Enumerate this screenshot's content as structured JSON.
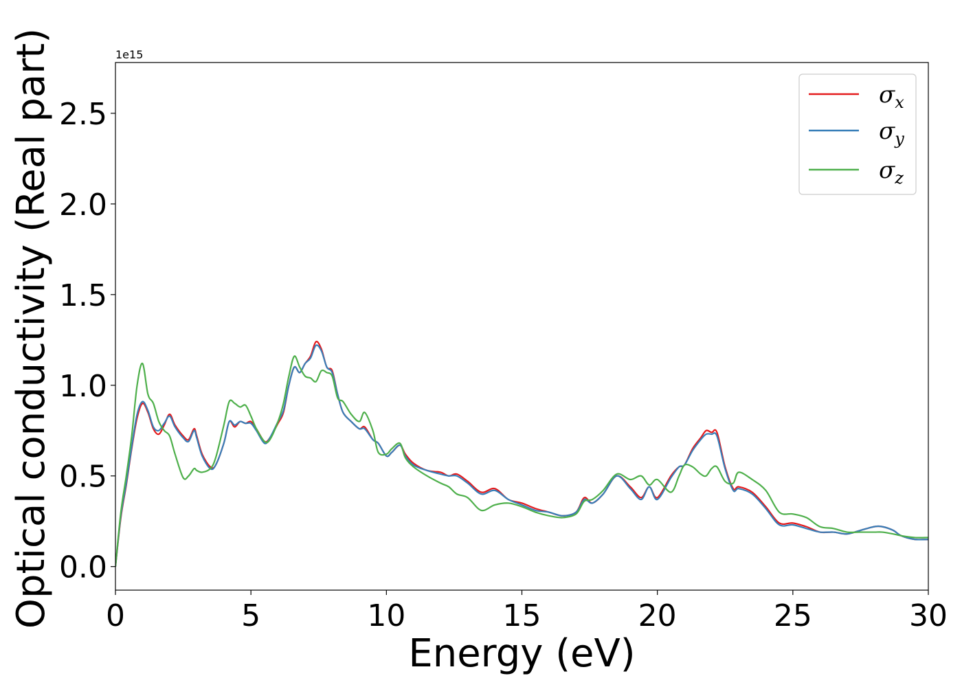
{
  "chart_data": {
    "type": "line",
    "title": "",
    "xlabel": "Energy (eV)",
    "ylabel": "Optical conductivity (Real part)",
    "y_offset_label": "1e15",
    "xlim": [
      0,
      30
    ],
    "ylim": [
      -0.13,
      2.78
    ],
    "xticks": [
      0,
      5,
      10,
      15,
      20,
      25,
      30
    ],
    "yticks": [
      0.0,
      0.5,
      1.0,
      1.5,
      2.0,
      2.5
    ],
    "xtick_labels": [
      "0",
      "5",
      "10",
      "15",
      "20",
      "25",
      "30"
    ],
    "ytick_labels": [
      "0.0",
      "0.5",
      "1.0",
      "1.5",
      "2.0",
      "2.5"
    ],
    "grid": false,
    "legend": "top-right",
    "series": [
      {
        "name": "σx",
        "symbol": "σ",
        "subscript": "x",
        "color": "#e41a1c",
        "x": [
          0,
          0.2,
          0.4,
          0.6,
          0.8,
          1.0,
          1.2,
          1.4,
          1.6,
          1.8,
          2.0,
          2.2,
          2.5,
          2.7,
          2.9,
          3.0,
          3.2,
          3.5,
          3.7,
          4.0,
          4.2,
          4.4,
          4.6,
          4.8,
          5.0,
          5.2,
          5.5,
          5.7,
          6.0,
          6.2,
          6.4,
          6.6,
          6.8,
          7.0,
          7.2,
          7.4,
          7.6,
          7.8,
          8.0,
          8.2,
          8.4,
          8.7,
          9.0,
          9.2,
          9.5,
          9.7,
          10.0,
          10.2,
          10.5,
          10.7,
          11.0,
          11.5,
          12.0,
          12.3,
          12.6,
          13.0,
          13.5,
          14.0,
          14.5,
          15.0,
          15.5,
          16.0,
          16.5,
          17.0,
          17.3,
          17.6,
          18.0,
          18.5,
          19.0,
          19.4,
          19.7,
          20.0,
          20.5,
          20.8,
          21.0,
          21.3,
          21.6,
          21.8,
          22.0,
          22.2,
          22.5,
          22.8,
          23.0,
          23.5,
          24.0,
          24.5,
          25.0,
          25.5,
          26.0,
          26.5,
          27.0,
          27.5,
          28.0,
          28.3,
          28.7,
          29.0,
          29.5,
          30.0
        ],
        "y": [
          0.0,
          0.27,
          0.45,
          0.65,
          0.82,
          0.9,
          0.85,
          0.76,
          0.73,
          0.78,
          0.84,
          0.78,
          0.72,
          0.7,
          0.76,
          0.72,
          0.62,
          0.55,
          0.56,
          0.68,
          0.8,
          0.77,
          0.8,
          0.79,
          0.8,
          0.76,
          0.69,
          0.71,
          0.79,
          0.85,
          1.0,
          1.1,
          1.07,
          1.12,
          1.16,
          1.24,
          1.2,
          1.1,
          1.08,
          0.95,
          0.85,
          0.8,
          0.76,
          0.77,
          0.7,
          0.68,
          0.61,
          0.63,
          0.67,
          0.62,
          0.57,
          0.53,
          0.52,
          0.5,
          0.51,
          0.47,
          0.41,
          0.43,
          0.37,
          0.35,
          0.32,
          0.3,
          0.28,
          0.3,
          0.38,
          0.35,
          0.4,
          0.5,
          0.44,
          0.38,
          0.44,
          0.38,
          0.5,
          0.55,
          0.56,
          0.65,
          0.71,
          0.75,
          0.74,
          0.74,
          0.55,
          0.43,
          0.44,
          0.41,
          0.33,
          0.24,
          0.24,
          0.22,
          0.19,
          0.19,
          0.18,
          0.2,
          0.22,
          0.22,
          0.2,
          0.17,
          0.15,
          0.15
        ]
      },
      {
        "name": "σy",
        "symbol": "σ",
        "subscript": "y",
        "color": "#377eb8",
        "x": [
          0,
          0.2,
          0.4,
          0.6,
          0.8,
          1.0,
          1.2,
          1.4,
          1.6,
          1.8,
          2.0,
          2.2,
          2.5,
          2.7,
          2.9,
          3.0,
          3.2,
          3.5,
          3.7,
          4.0,
          4.2,
          4.4,
          4.6,
          4.8,
          5.0,
          5.2,
          5.5,
          5.7,
          6.0,
          6.2,
          6.4,
          6.6,
          6.8,
          7.0,
          7.2,
          7.4,
          7.6,
          7.8,
          8.0,
          8.2,
          8.4,
          8.7,
          9.0,
          9.2,
          9.5,
          9.7,
          10.0,
          10.2,
          10.5,
          10.7,
          11.0,
          11.5,
          12.0,
          12.3,
          12.6,
          13.0,
          13.5,
          14.0,
          14.5,
          15.0,
          15.5,
          16.0,
          16.5,
          17.0,
          17.3,
          17.6,
          18.0,
          18.5,
          19.0,
          19.4,
          19.7,
          20.0,
          20.5,
          20.8,
          21.0,
          21.3,
          21.6,
          21.8,
          22.0,
          22.2,
          22.5,
          22.8,
          23.0,
          23.5,
          24.0,
          24.5,
          25.0,
          25.5,
          26.0,
          26.5,
          27.0,
          27.5,
          28.0,
          28.3,
          28.7,
          29.0,
          29.5,
          30.0
        ],
        "y": [
          0.0,
          0.28,
          0.46,
          0.66,
          0.84,
          0.91,
          0.86,
          0.77,
          0.75,
          0.79,
          0.83,
          0.77,
          0.71,
          0.69,
          0.75,
          0.71,
          0.61,
          0.54,
          0.56,
          0.68,
          0.8,
          0.78,
          0.8,
          0.79,
          0.79,
          0.75,
          0.68,
          0.71,
          0.8,
          0.86,
          1.0,
          1.1,
          1.07,
          1.12,
          1.15,
          1.22,
          1.19,
          1.1,
          1.07,
          0.95,
          0.85,
          0.8,
          0.76,
          0.76,
          0.7,
          0.68,
          0.61,
          0.63,
          0.67,
          0.61,
          0.56,
          0.53,
          0.51,
          0.5,
          0.5,
          0.46,
          0.4,
          0.42,
          0.37,
          0.34,
          0.31,
          0.3,
          0.28,
          0.3,
          0.37,
          0.35,
          0.4,
          0.5,
          0.43,
          0.37,
          0.44,
          0.37,
          0.49,
          0.55,
          0.56,
          0.64,
          0.7,
          0.73,
          0.73,
          0.72,
          0.54,
          0.42,
          0.43,
          0.4,
          0.32,
          0.23,
          0.23,
          0.21,
          0.19,
          0.19,
          0.18,
          0.2,
          0.22,
          0.22,
          0.2,
          0.17,
          0.15,
          0.15
        ]
      },
      {
        "name": "σz",
        "symbol": "σ",
        "subscript": "z",
        "color": "#4daf4a",
        "x": [
          0,
          0.2,
          0.4,
          0.6,
          0.8,
          1.0,
          1.2,
          1.4,
          1.6,
          1.8,
          2.0,
          2.2,
          2.5,
          2.7,
          2.9,
          3.0,
          3.2,
          3.5,
          3.7,
          4.0,
          4.2,
          4.4,
          4.6,
          4.8,
          5.0,
          5.2,
          5.5,
          5.7,
          6.0,
          6.2,
          6.4,
          6.6,
          6.8,
          7.0,
          7.2,
          7.4,
          7.6,
          7.8,
          8.0,
          8.2,
          8.4,
          8.7,
          9.0,
          9.2,
          9.5,
          9.7,
          10.0,
          10.2,
          10.5,
          10.7,
          11.0,
          11.5,
          12.0,
          12.3,
          12.6,
          13.0,
          13.5,
          14.0,
          14.5,
          15.0,
          15.5,
          16.0,
          16.5,
          17.0,
          17.3,
          17.6,
          18.0,
          18.5,
          19.0,
          19.4,
          19.7,
          20.0,
          20.5,
          20.8,
          21.0,
          21.3,
          21.6,
          21.8,
          22.0,
          22.2,
          22.5,
          22.8,
          23.0,
          23.5,
          24.0,
          24.5,
          25.0,
          25.5,
          26.0,
          26.5,
          27.0,
          27.5,
          28.0,
          28.3,
          28.7,
          29.0,
          29.5,
          30.0
        ],
        "y": [
          0.0,
          0.3,
          0.5,
          0.72,
          1.0,
          1.12,
          0.95,
          0.9,
          0.8,
          0.75,
          0.72,
          0.62,
          0.49,
          0.5,
          0.54,
          0.53,
          0.52,
          0.54,
          0.6,
          0.78,
          0.91,
          0.9,
          0.88,
          0.89,
          0.83,
          0.76,
          0.69,
          0.7,
          0.8,
          0.9,
          1.05,
          1.16,
          1.1,
          1.05,
          1.04,
          1.02,
          1.08,
          1.07,
          1.05,
          0.93,
          0.91,
          0.84,
          0.8,
          0.85,
          0.75,
          0.63,
          0.62,
          0.65,
          0.68,
          0.6,
          0.55,
          0.5,
          0.46,
          0.44,
          0.4,
          0.38,
          0.31,
          0.34,
          0.35,
          0.33,
          0.3,
          0.28,
          0.27,
          0.29,
          0.36,
          0.37,
          0.42,
          0.51,
          0.48,
          0.5,
          0.45,
          0.48,
          0.41,
          0.5,
          0.56,
          0.55,
          0.51,
          0.5,
          0.54,
          0.55,
          0.47,
          0.46,
          0.52,
          0.48,
          0.42,
          0.3,
          0.29,
          0.27,
          0.22,
          0.21,
          0.19,
          0.19,
          0.19,
          0.19,
          0.18,
          0.17,
          0.16,
          0.16
        ]
      }
    ]
  }
}
